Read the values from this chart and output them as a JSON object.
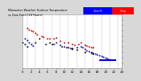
{
  "title_left": "Milwaukee Weather Outdoor Temperature",
  "title_right": "vs Dew Point (24 Hours)",
  "background_color": "#d8d8d8",
  "plot_bg_color": "#ffffff",
  "xlim": [
    0,
    24
  ],
  "ylim": [
    0,
    10
  ],
  "grid_x": [
    1,
    3,
    5,
    7,
    9,
    11,
    13,
    15,
    17,
    19,
    21,
    23
  ],
  "temp_color": "#cc0000",
  "dew_color": "#0000cc",
  "black_color": "#000000",
  "marker_size": 2.0,
  "tick_fontsize": 2.8,
  "legend_bar_blue": "#0000ff",
  "legend_bar_red": "#ff0000",
  "temp_x": [
    1.0,
    1.5,
    2.0,
    2.5,
    3.0,
    3.5,
    4.5,
    5.0,
    6.0,
    6.5,
    7.5,
    8.0,
    9.0,
    10.0,
    11.0,
    12.0,
    12.5,
    13.5,
    14.0,
    15.0,
    15.5,
    16.0,
    16.5,
    17.0
  ],
  "temp_y": [
    7.5,
    7.2,
    7.0,
    6.8,
    6.5,
    6.3,
    6.0,
    5.8,
    5.5,
    5.5,
    5.5,
    5.7,
    5.0,
    4.8,
    4.7,
    4.5,
    4.3,
    4.5,
    4.7,
    4.3,
    4.1,
    4.0,
    3.9,
    3.8
  ],
  "dew_x": [
    0.5,
    1.0,
    1.5,
    2.0,
    2.5,
    7.5,
    8.0,
    9.0,
    10.0,
    11.0,
    12.0,
    13.0,
    14.0,
    14.5,
    15.0,
    15.5,
    16.0,
    16.5,
    17.0,
    17.5,
    18.0,
    18.5,
    19.0,
    19.5,
    20.0,
    20.5,
    21.0
  ],
  "dew_y": [
    5.5,
    5.2,
    4.8,
    4.5,
    4.2,
    4.5,
    4.7,
    4.3,
    4.0,
    3.8,
    3.7,
    3.9,
    4.0,
    3.8,
    3.6,
    3.3,
    3.1,
    3.0,
    2.8,
    2.7,
    2.5,
    2.4,
    2.2,
    2.1,
    1.9,
    1.8,
    1.7
  ],
  "black_x": [
    0.0,
    0.5,
    1.0,
    3.0,
    4.0,
    5.5,
    6.5,
    7.0,
    9.5,
    10.5,
    11.5,
    12.0,
    13.0,
    15.0,
    16.5,
    17.0
  ],
  "black_y": [
    4.8,
    4.5,
    4.0,
    4.8,
    5.5,
    4.5,
    4.8,
    4.5,
    4.0,
    3.8,
    3.7,
    3.6,
    3.4,
    3.0,
    2.8,
    2.6
  ],
  "hline_y": 1.5,
  "hline_xstart": 18.5,
  "hline_xend": 22.5,
  "y_tick_positions": [
    1,
    2,
    3,
    4,
    5,
    6,
    7,
    8,
    9
  ],
  "y_tick_labels": [
    "",
    "",
    "",
    "",
    "",
    "",
    "",
    "",
    ""
  ],
  "x_tick_positions": [
    0,
    2,
    4,
    6,
    8,
    10,
    12,
    14,
    16,
    18,
    20,
    22,
    24
  ]
}
